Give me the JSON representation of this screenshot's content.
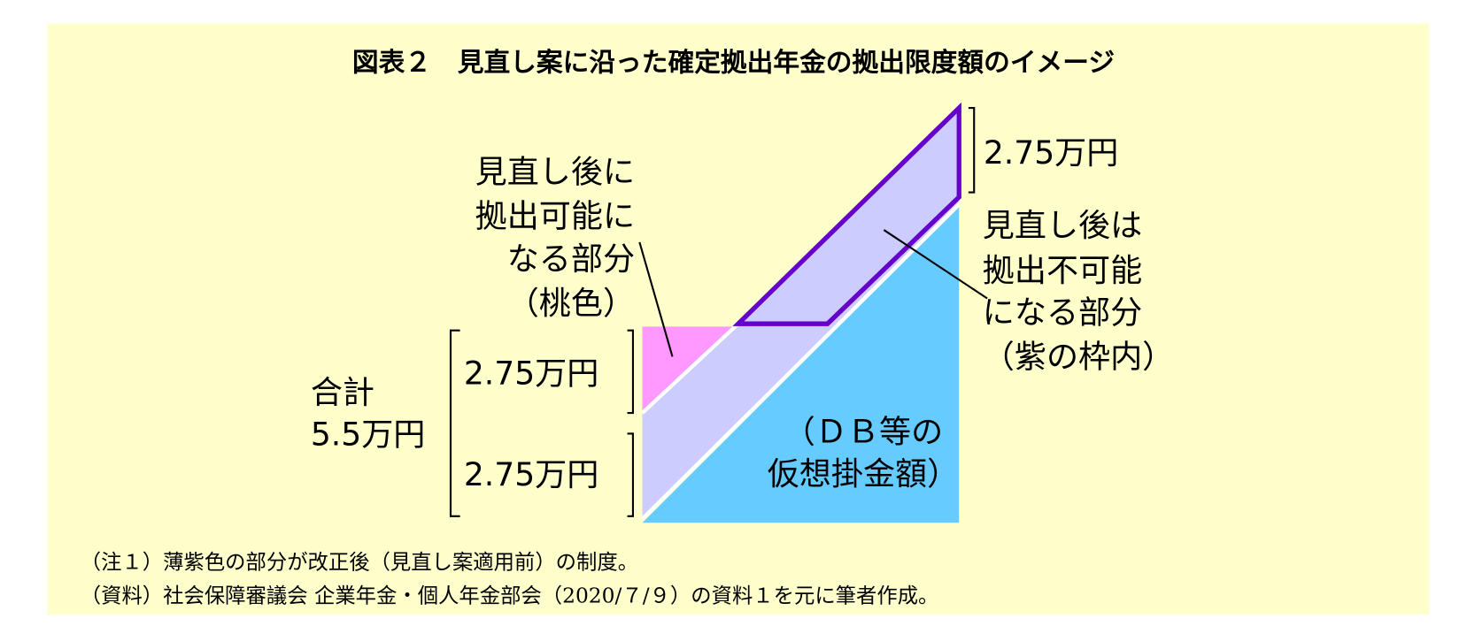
{
  "title": "図表２　見直し案に沿った確定拠出年金の拠出限度額のイメージ",
  "left_label": [
    "見直し後に",
    "拠出可能に",
    "なる部分",
    "（桃色）"
  ],
  "right_label": [
    "見直し後は",
    "拠出不可能",
    "になる部分",
    "（紫の枠内）"
  ],
  "blue_label": [
    "（ＤＢ等の",
    "仮想掛金額）"
  ],
  "top_amount": "2.75万円",
  "upper_amount": "2.75万円",
  "lower_amount": "2.75万円",
  "total": [
    "合計",
    "5.5万円"
  ],
  "notes": [
    "（注１）薄紫色の部分が改正後（見直し案適用前）の制度。",
    "（資料）社会保障審議会  企業年金・個人年金部会（2020/７/９）の資料１を元に筆者作成。"
  ]
}
